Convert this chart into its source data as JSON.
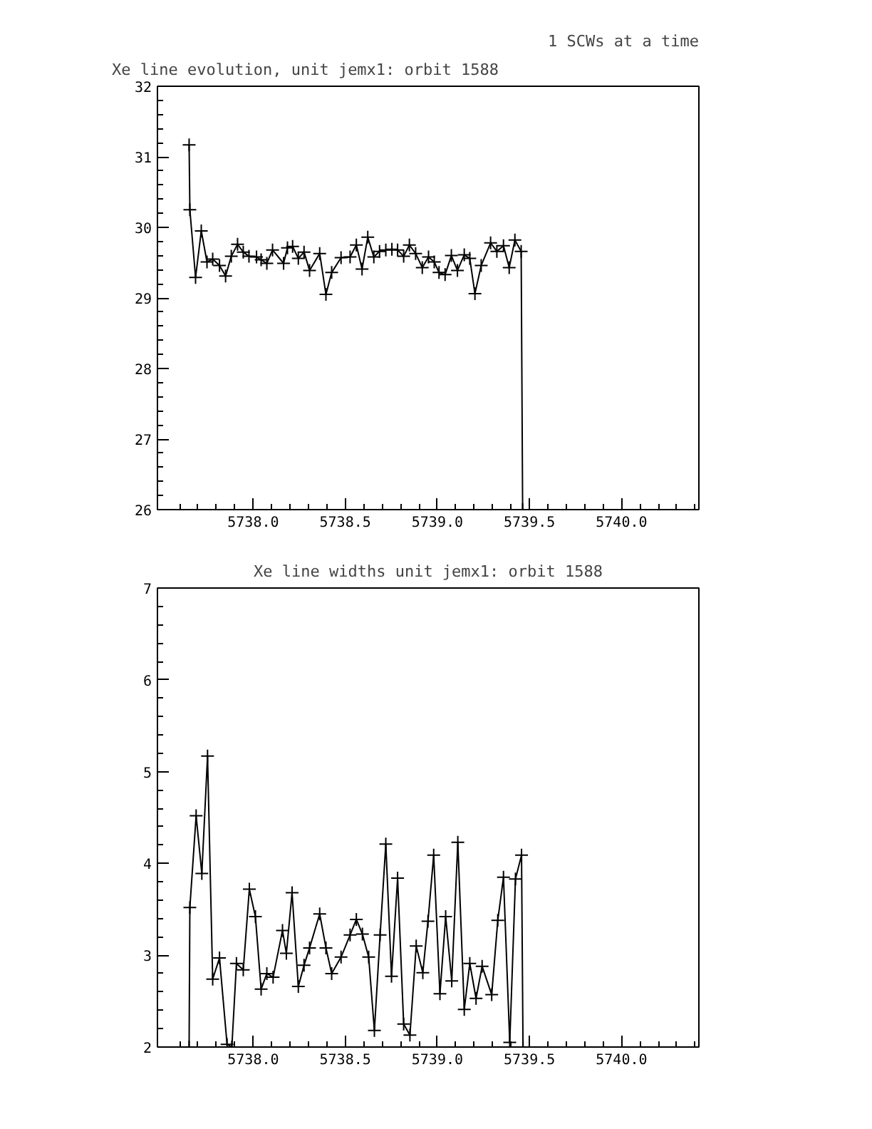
{
  "chart_data": [
    {
      "type": "line",
      "title": "Xe line evolution, unit jemx1: orbit 1588",
      "annotations": [
        "1 SCWs at a time"
      ],
      "marker": "cross",
      "x": [
        5737.652,
        5737.656,
        5737.687,
        5737.718,
        5737.749,
        5737.78,
        5737.817,
        5737.85,
        5737.881,
        5737.915,
        5737.946,
        5737.977,
        5738.018,
        5738.043,
        5738.074,
        5738.105,
        5738.165,
        5738.186,
        5738.214,
        5738.245,
        5738.276,
        5738.306,
        5738.361,
        5738.395,
        5738.426,
        5738.477,
        5738.526,
        5738.56,
        5738.591,
        5738.622,
        5738.655,
        5738.686,
        5738.72,
        5738.753,
        5738.784,
        5738.817,
        5738.848,
        5738.882,
        5738.918,
        5738.952,
        5738.983,
        5739.009,
        5739.042,
        5739.076,
        5739.109,
        5739.146,
        5739.176,
        5739.204,
        5739.238,
        5739.289,
        5739.323,
        5739.359,
        5739.39,
        5739.421,
        5739.455,
        5739.463
      ],
      "values": [
        31.17,
        30.25,
        29.29,
        29.95,
        29.51,
        29.55,
        29.46,
        29.31,
        29.59,
        29.76,
        29.65,
        29.59,
        29.58,
        29.54,
        29.49,
        29.68,
        29.49,
        29.71,
        29.73,
        29.56,
        29.65,
        29.39,
        29.63,
        29.05,
        29.36,
        29.57,
        29.58,
        29.75,
        29.41,
        29.86,
        29.58,
        29.66,
        29.68,
        29.69,
        29.68,
        29.59,
        29.75,
        29.63,
        29.43,
        29.58,
        29.51,
        29.36,
        29.33,
        29.6,
        29.39,
        29.61,
        29.56,
        29.06,
        29.46,
        29.78,
        29.66,
        29.74,
        29.43,
        29.82,
        29.66,
        26
      ],
      "xlim": [
        5737.48,
        5740.42
      ],
      "ylim": [
        26,
        32
      ],
      "xticks": [
        {
          "value": 5738,
          "label": "5738.0"
        },
        {
          "value": 5738.5,
          "label": "5738.5"
        },
        {
          "value": 5739,
          "label": "5739.0"
        },
        {
          "value": 5739.5,
          "label": "5739.5"
        },
        {
          "value": 5740,
          "label": "5740.0"
        }
      ],
      "yticks": [
        26,
        27,
        28,
        29,
        30,
        31,
        32
      ]
    },
    {
      "type": "line",
      "title": "Xe line widths unit jemx1: orbit 1588",
      "marker": "cross",
      "x": [
        5737.652,
        5737.656,
        5737.69,
        5737.721,
        5737.752,
        5737.78,
        5737.817,
        5737.858,
        5737.884,
        5737.909,
        5737.946,
        5737.979,
        5738.012,
        5738.043,
        5738.074,
        5738.108,
        5738.159,
        5738.18,
        5738.211,
        5738.245,
        5738.276,
        5738.306,
        5738.361,
        5738.395,
        5738.426,
        5738.477,
        5738.526,
        5738.56,
        5738.593,
        5738.627,
        5738.658,
        5738.689,
        5738.72,
        5738.751,
        5738.784,
        5738.817,
        5738.851,
        5738.885,
        5738.921,
        5738.949,
        5738.98,
        5739.014,
        5739.045,
        5739.078,
        5739.111,
        5739.146,
        5739.176,
        5739.21,
        5739.243,
        5739.295,
        5739.328,
        5739.359,
        5739.393,
        5739.424,
        5739.457,
        5739.465
      ],
      "values": [
        2,
        3.52,
        4.52,
        3.89,
        5.17,
        2.74,
        2.97,
        2.03,
        2.0,
        2.91,
        2.84,
        3.72,
        3.42,
        2.63,
        2.8,
        2.76,
        3.27,
        3.02,
        3.68,
        2.66,
        2.89,
        3.08,
        3.45,
        3.08,
        2.8,
        2.98,
        3.22,
        3.39,
        3.23,
        2.98,
        2.18,
        3.22,
        4.21,
        2.77,
        3.84,
        2.25,
        2.13,
        3.1,
        2.81,
        3.37,
        4.09,
        2.58,
        3.42,
        2.72,
        4.23,
        2.41,
        2.91,
        2.53,
        2.88,
        2.57,
        3.38,
        3.85,
        2.05,
        3.83,
        4.09,
        2
      ],
      "xlim": [
        5737.48,
        5740.42
      ],
      "ylim": [
        2,
        7
      ],
      "xticks": [
        {
          "value": 5738,
          "label": "5738.0"
        },
        {
          "value": 5738.5,
          "label": "5738.5"
        },
        {
          "value": 5739,
          "label": "5739.0"
        },
        {
          "value": 5739.5,
          "label": "5739.5"
        },
        {
          "value": 5740,
          "label": "5740.0"
        }
      ],
      "yticks": [
        2,
        3,
        4,
        5,
        6,
        7
      ]
    }
  ]
}
